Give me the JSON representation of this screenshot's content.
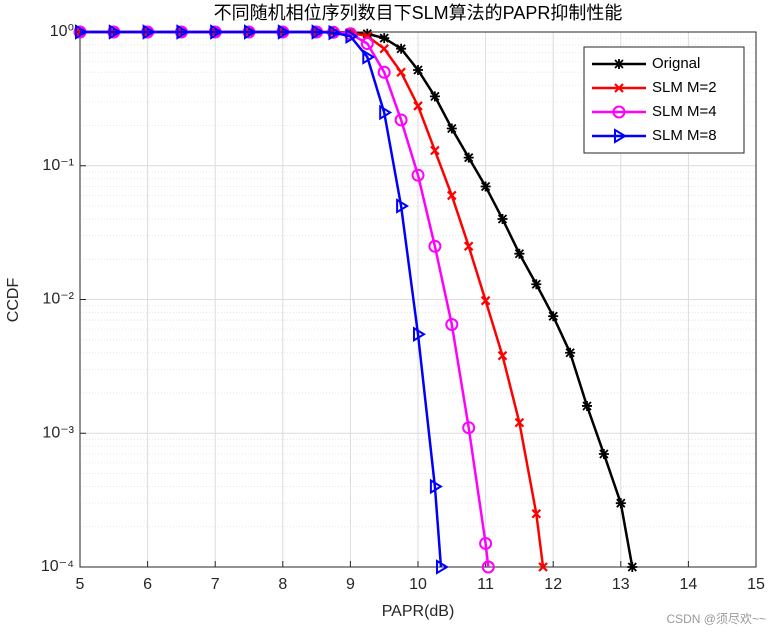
{
  "chart_data": {
    "type": "line",
    "title": "不同随机相位序列数目下SLM算法的PAPR抑制性能",
    "xlabel": "PAPR(dB)",
    "ylabel": "CCDF",
    "xlim": [
      5,
      15
    ],
    "xticks": [
      5,
      6,
      7,
      8,
      9,
      10,
      11,
      12,
      13,
      14,
      15
    ],
    "ylim": [
      0.0001,
      1
    ],
    "log_y": true,
    "grid": true,
    "legend": "upper right",
    "yticks": [
      {
        "value": 1,
        "label": "10⁰"
      },
      {
        "value": 0.1,
        "label": "10⁻¹"
      },
      {
        "value": 0.01,
        "label": "10⁻²"
      },
      {
        "value": 0.001,
        "label": "10⁻³"
      },
      {
        "value": 0.0001,
        "label": "10⁻⁴"
      }
    ],
    "series": [
      {
        "name": "Orignal",
        "color": "#000000",
        "marker": "asterisk",
        "x": [
          5,
          5.5,
          6,
          6.5,
          7,
          7.5,
          8,
          8.5,
          8.75,
          9,
          9.25,
          9.5,
          9.75,
          10,
          10.25,
          10.5,
          10.75,
          11,
          11.25,
          11.5,
          11.75,
          12,
          12.25,
          12.5,
          12.75,
          13,
          13.17
        ],
        "values": [
          1,
          1,
          1,
          1,
          1,
          1,
          1,
          1,
          0.998,
          0.99,
          0.97,
          0.9,
          0.75,
          0.52,
          0.33,
          0.19,
          0.115,
          0.07,
          0.04,
          0.022,
          0.013,
          0.0075,
          0.004,
          0.0016,
          0.0007,
          0.0003,
          0.0001
        ]
      },
      {
        "name": "SLM M=2",
        "color": "#ff0000",
        "marker": "x",
        "x": [
          5,
          5.5,
          6,
          6.5,
          7,
          7.5,
          8,
          8.5,
          8.75,
          9,
          9.25,
          9.5,
          9.75,
          10,
          10.25,
          10.5,
          10.75,
          11,
          11.25,
          11.5,
          11.75,
          11.85
        ],
        "values": [
          1,
          1,
          1,
          1,
          1,
          1,
          1,
          1,
          0.998,
          0.99,
          0.93,
          0.75,
          0.5,
          0.28,
          0.13,
          0.06,
          0.025,
          0.0098,
          0.0038,
          0.0012,
          0.00025,
          0.0001
        ]
      },
      {
        "name": "SLM M=4",
        "color": "#ff00ff",
        "marker": "circle",
        "x": [
          5,
          5.5,
          6,
          6.5,
          7,
          7.5,
          8,
          8.5,
          8.75,
          9,
          9.25,
          9.5,
          9.75,
          10,
          10.25,
          10.5,
          10.75,
          11,
          11.04
        ],
        "values": [
          1,
          1,
          1,
          1,
          1,
          1,
          1,
          1,
          0.995,
          0.97,
          0.82,
          0.5,
          0.22,
          0.085,
          0.025,
          0.0065,
          0.0011,
          0.00015,
          0.0001
        ]
      },
      {
        "name": "SLM M=8",
        "color": "#0000ff",
        "marker": "triangle-right",
        "x": [
          5,
          5.5,
          6,
          6.5,
          7,
          7.5,
          8,
          8.5,
          8.75,
          9,
          9.25,
          9.5,
          9.75,
          10,
          10.25,
          10.34
        ],
        "values": [
          1,
          1,
          1,
          1,
          1,
          1,
          1,
          1,
          0.99,
          0.93,
          0.65,
          0.25,
          0.05,
          0.0055,
          0.0004,
          0.0001
        ]
      }
    ],
    "watermark": "CSDN @须尽欢~~"
  }
}
